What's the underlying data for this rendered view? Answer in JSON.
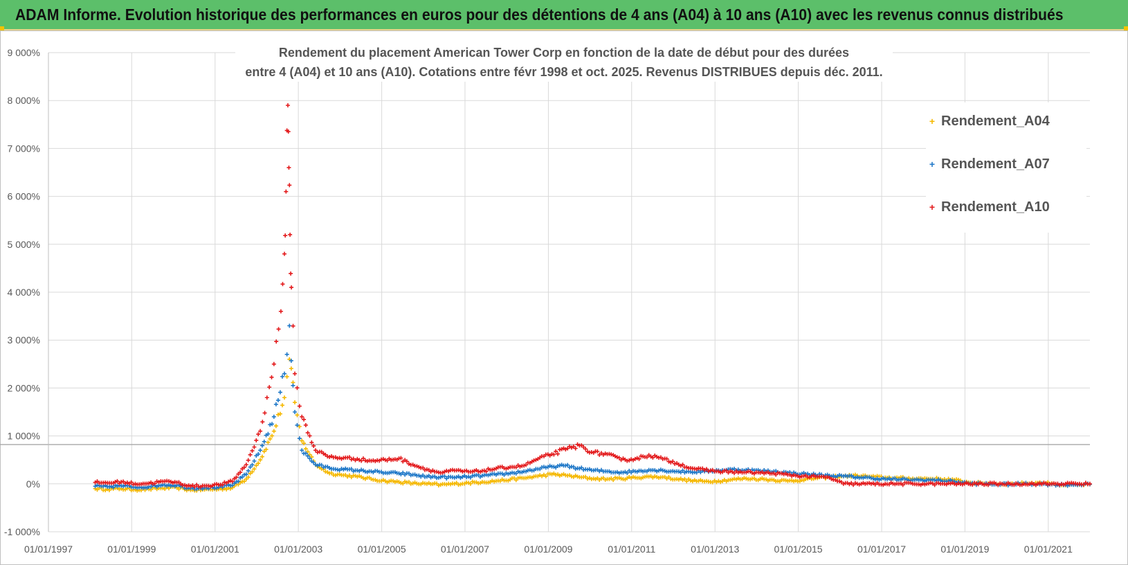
{
  "header": {
    "title": "ADAM Informe. Evolution historique des performances en euros pour des détentions de 4 ans (A04) à 10 ans (A10) avec les revenus connus distribués"
  },
  "colors": {
    "header_bg": "#5cbf6a",
    "a04": "#f5b800",
    "a07": "#1f78c8",
    "a10": "#e31a1c",
    "grid": "#d9d9d9",
    "axis_text": "#595959"
  },
  "chart_data": {
    "type": "scatter",
    "title_lines": [
      "Rendement du placement American Tower Corp en fonction de la date de début pour des durées",
      "entre 4 (A04) et 10 ans (A10). Cotations entre févr 1998 et oct. 2025. Revenus DISTRIBUES depuis déc. 2011."
    ],
    "xlabel": "",
    "ylabel": "",
    "x_ticks": [
      "01/01/1997",
      "01/01/1999",
      "01/01/2001",
      "01/01/2003",
      "01/01/2005",
      "01/01/2007",
      "01/01/2009",
      "01/01/2011",
      "01/01/2013",
      "01/01/2015",
      "01/01/2017",
      "01/01/2019",
      "01/01/2021"
    ],
    "xlim": [
      "1997-01-01",
      "2022-01-01"
    ],
    "y_ticks": [
      "-1 000%",
      "0%",
      "1 000%",
      "2 000%",
      "3 000%",
      "4 000%",
      "5 000%",
      "6 000%",
      "7 000%",
      "8 000%",
      "9 000%"
    ],
    "ylim": [
      -1000,
      9000
    ],
    "grid": true,
    "legend_position": "top-right",
    "reference_line_y": 820,
    "series": [
      {
        "name": "Rendement_A04",
        "color_key": "a04",
        "points": [
          [
            "1998-02-15",
            -100
          ],
          [
            "1998-06-01",
            -110
          ],
          [
            "1998-10-01",
            -100
          ],
          [
            "1999-02-01",
            -120
          ],
          [
            "1999-06-01",
            -110
          ],
          [
            "1999-10-01",
            -90
          ],
          [
            "2000-02-01",
            -80
          ],
          [
            "2000-06-01",
            -130
          ],
          [
            "2000-10-01",
            -120
          ],
          [
            "2001-02-01",
            -110
          ],
          [
            "2001-06-01",
            -80
          ],
          [
            "2001-10-01",
            100
          ],
          [
            "2002-02-01",
            500
          ],
          [
            "2002-06-01",
            1100
          ],
          [
            "2002-09-01",
            1800
          ],
          [
            "2002-10-15",
            2600
          ],
          [
            "2002-12-01",
            1700
          ],
          [
            "2003-02-01",
            900
          ],
          [
            "2003-06-01",
            400
          ],
          [
            "2003-10-01",
            220
          ],
          [
            "2004-02-01",
            180
          ],
          [
            "2004-06-01",
            150
          ],
          [
            "2004-10-01",
            100
          ],
          [
            "2005-02-01",
            60
          ],
          [
            "2005-06-01",
            40
          ],
          [
            "2005-10-01",
            10
          ],
          [
            "2006-02-01",
            0
          ],
          [
            "2006-06-01",
            -20
          ],
          [
            "2006-10-01",
            0
          ],
          [
            "2007-02-01",
            20
          ],
          [
            "2007-06-01",
            40
          ],
          [
            "2007-10-01",
            60
          ],
          [
            "2008-02-01",
            90
          ],
          [
            "2008-06-01",
            120
          ],
          [
            "2008-10-01",
            160
          ],
          [
            "2009-02-01",
            200
          ],
          [
            "2009-06-01",
            180
          ],
          [
            "2009-10-01",
            140
          ],
          [
            "2010-02-01",
            110
          ],
          [
            "2010-06-01",
            100
          ],
          [
            "2010-10-01",
            110
          ],
          [
            "2011-02-01",
            130
          ],
          [
            "2011-06-01",
            150
          ],
          [
            "2011-10-01",
            140
          ],
          [
            "2012-02-01",
            100
          ],
          [
            "2012-06-01",
            70
          ],
          [
            "2012-10-01",
            50
          ],
          [
            "2013-02-01",
            60
          ],
          [
            "2013-06-01",
            90
          ],
          [
            "2013-10-01",
            110
          ],
          [
            "2014-02-01",
            100
          ],
          [
            "2014-06-01",
            80
          ],
          [
            "2014-10-01",
            60
          ],
          [
            "2015-02-01",
            80
          ],
          [
            "2015-06-01",
            120
          ],
          [
            "2015-10-01",
            140
          ],
          [
            "2016-02-01",
            160
          ],
          [
            "2016-06-01",
            170
          ],
          [
            "2016-10-01",
            150
          ],
          [
            "2017-02-01",
            130
          ],
          [
            "2017-06-01",
            120
          ],
          [
            "2017-10-01",
            110
          ],
          [
            "2018-02-01",
            110
          ],
          [
            "2018-06-01",
            100
          ],
          [
            "2018-10-01",
            80
          ],
          [
            "2019-02-01",
            30
          ],
          [
            "2019-06-01",
            10
          ],
          [
            "2019-10-01",
            0
          ],
          [
            "2020-02-01",
            0
          ],
          [
            "2020-06-01",
            10
          ],
          [
            "2020-10-01",
            20
          ],
          [
            "2021-02-01",
            10
          ],
          [
            "2021-06-01",
            -30
          ],
          [
            "2021-10-01",
            -20
          ],
          [
            "2021-12-31",
            -10
          ]
        ]
      },
      {
        "name": "Rendement_A07",
        "color_key": "a07",
        "points": [
          [
            "1998-02-15",
            -50
          ],
          [
            "1998-06-01",
            -60
          ],
          [
            "1998-10-01",
            -40
          ],
          [
            "1999-02-01",
            -70
          ],
          [
            "1999-06-01",
            -60
          ],
          [
            "1999-10-01",
            -20
          ],
          [
            "2000-02-01",
            -30
          ],
          [
            "2000-06-01",
            -90
          ],
          [
            "2000-10-01",
            -80
          ],
          [
            "2001-02-01",
            -70
          ],
          [
            "2001-06-01",
            -30
          ],
          [
            "2001-10-01",
            200
          ],
          [
            "2002-02-01",
            700
          ],
          [
            "2002-06-01",
            1400
          ],
          [
            "2002-09-01",
            2300
          ],
          [
            "2002-10-15",
            3300
          ],
          [
            "2002-12-01",
            1500
          ],
          [
            "2003-02-01",
            700
          ],
          [
            "2003-06-01",
            400
          ],
          [
            "2003-10-01",
            330
          ],
          [
            "2004-02-01",
            300
          ],
          [
            "2004-06-01",
            280
          ],
          [
            "2004-10-01",
            260
          ],
          [
            "2005-02-01",
            230
          ],
          [
            "2005-06-01",
            220
          ],
          [
            "2005-10-01",
            190
          ],
          [
            "2006-02-01",
            150
          ],
          [
            "2006-06-01",
            140
          ],
          [
            "2006-10-01",
            130
          ],
          [
            "2007-02-01",
            150
          ],
          [
            "2007-06-01",
            170
          ],
          [
            "2007-10-01",
            190
          ],
          [
            "2008-02-01",
            220
          ],
          [
            "2008-06-01",
            260
          ],
          [
            "2008-10-01",
            310
          ],
          [
            "2009-02-01",
            360
          ],
          [
            "2009-06-01",
            380
          ],
          [
            "2009-10-01",
            320
          ],
          [
            "2010-02-01",
            280
          ],
          [
            "2010-06-01",
            260
          ],
          [
            "2010-10-01",
            240
          ],
          [
            "2011-02-01",
            260
          ],
          [
            "2011-06-01",
            290
          ],
          [
            "2011-10-01",
            280
          ],
          [
            "2012-02-01",
            260
          ],
          [
            "2012-06-01",
            250
          ],
          [
            "2012-10-01",
            260
          ],
          [
            "2013-02-01",
            280
          ],
          [
            "2013-06-01",
            300
          ],
          [
            "2013-10-01",
            290
          ],
          [
            "2014-02-01",
            270
          ],
          [
            "2014-06-01",
            260
          ],
          [
            "2014-10-01",
            230
          ],
          [
            "2015-02-01",
            210
          ],
          [
            "2015-06-01",
            190
          ],
          [
            "2015-10-01",
            170
          ],
          [
            "2016-02-01",
            160
          ],
          [
            "2016-06-01",
            140
          ],
          [
            "2016-10-01",
            120
          ],
          [
            "2017-02-01",
            100
          ],
          [
            "2017-06-01",
            90
          ],
          [
            "2017-10-01",
            80
          ],
          [
            "2018-02-01",
            80
          ],
          [
            "2018-06-01",
            70
          ],
          [
            "2018-10-01",
            50
          ],
          [
            "2019-02-01",
            10
          ],
          [
            "2019-06-01",
            0
          ],
          [
            "2019-10-01",
            -10
          ],
          [
            "2020-02-01",
            -10
          ],
          [
            "2020-06-01",
            0
          ],
          [
            "2020-10-01",
            0
          ],
          [
            "2021-02-01",
            -10
          ],
          [
            "2021-06-01",
            -20
          ],
          [
            "2021-10-01",
            -10
          ],
          [
            "2021-12-31",
            -10
          ]
        ]
      },
      {
        "name": "Rendement_A10",
        "color_key": "a10",
        "points": [
          [
            "1998-02-15",
            30
          ],
          [
            "1998-06-01",
            20
          ],
          [
            "1998-10-01",
            40
          ],
          [
            "1999-02-01",
            0
          ],
          [
            "1999-06-01",
            10
          ],
          [
            "1999-10-01",
            50
          ],
          [
            "2000-02-01",
            30
          ],
          [
            "2000-06-01",
            -50
          ],
          [
            "2000-10-01",
            -40
          ],
          [
            "2001-02-01",
            -20
          ],
          [
            "2001-06-01",
            50
          ],
          [
            "2001-10-01",
            400
          ],
          [
            "2002-02-01",
            1100
          ],
          [
            "2002-04-01",
            1800
          ],
          [
            "2002-06-01",
            2500
          ],
          [
            "2002-08-01",
            3600
          ],
          [
            "2002-09-01",
            4800
          ],
          [
            "2002-09-15",
            6100
          ],
          [
            "2002-10-01",
            7900
          ],
          [
            "2002-10-10",
            6600
          ],
          [
            "2002-10-20",
            5200
          ],
          [
            "2002-11-01",
            4100
          ],
          [
            "2002-12-01",
            2300
          ],
          [
            "2003-02-01",
            1400
          ],
          [
            "2003-06-01",
            700
          ],
          [
            "2003-10-01",
            560
          ],
          [
            "2004-02-01",
            540
          ],
          [
            "2004-06-01",
            520
          ],
          [
            "2004-10-01",
            480
          ],
          [
            "2005-02-01",
            500
          ],
          [
            "2005-06-01",
            530
          ],
          [
            "2005-10-01",
            400
          ],
          [
            "2006-02-01",
            300
          ],
          [
            "2006-06-01",
            230
          ],
          [
            "2006-10-01",
            280
          ],
          [
            "2007-02-01",
            250
          ],
          [
            "2007-06-01",
            270
          ],
          [
            "2007-10-01",
            320
          ],
          [
            "2008-02-01",
            350
          ],
          [
            "2008-06-01",
            380
          ],
          [
            "2008-10-01",
            520
          ],
          [
            "2009-02-01",
            620
          ],
          [
            "2009-06-01",
            720
          ],
          [
            "2009-10-01",
            800
          ],
          [
            "2010-02-01",
            650
          ],
          [
            "2010-06-01",
            620
          ],
          [
            "2010-10-01",
            500
          ],
          [
            "2011-02-01",
            520
          ],
          [
            "2011-06-01",
            600
          ],
          [
            "2011-10-01",
            520
          ],
          [
            "2012-02-01",
            430
          ],
          [
            "2012-06-01",
            330
          ],
          [
            "2012-10-01",
            290
          ],
          [
            "2013-02-01",
            260
          ],
          [
            "2013-06-01",
            250
          ],
          [
            "2013-10-01",
            240
          ],
          [
            "2014-02-01",
            230
          ],
          [
            "2014-06-01",
            220
          ],
          [
            "2014-10-01",
            190
          ],
          [
            "2015-02-01",
            160
          ],
          [
            "2015-06-01",
            150
          ],
          [
            "2015-10-01",
            130
          ],
          [
            "2016-02-01",
            0
          ],
          [
            "2016-06-01",
            0
          ],
          [
            "2016-10-01",
            0
          ],
          [
            "2017-02-01",
            0
          ],
          [
            "2017-06-01",
            0
          ],
          [
            "2017-10-01",
            0
          ],
          [
            "2018-02-01",
            0
          ],
          [
            "2018-06-01",
            0
          ],
          [
            "2018-10-01",
            0
          ],
          [
            "2019-02-01",
            0
          ],
          [
            "2019-06-01",
            0
          ],
          [
            "2019-10-01",
            0
          ],
          [
            "2020-02-01",
            0
          ],
          [
            "2020-06-01",
            0
          ],
          [
            "2020-10-01",
            0
          ],
          [
            "2021-02-01",
            0
          ],
          [
            "2021-06-01",
            0
          ],
          [
            "2021-10-01",
            0
          ],
          [
            "2021-12-31",
            0
          ]
        ]
      }
    ]
  }
}
